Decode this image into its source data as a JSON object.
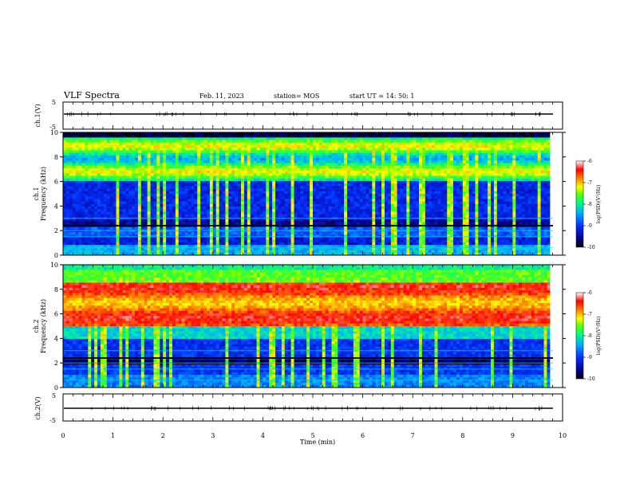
{
  "header": {
    "title": "VLF Spectra",
    "date": "Feb. 11, 2023",
    "station": "station= MOS",
    "start": "start  UT  =   14: 50: 1"
  },
  "chart_data": [
    {
      "type": "line",
      "name": "ch1-waveform",
      "ylabel": "ch.1(V)",
      "ylim": [
        -5,
        5
      ],
      "yticks": [
        "5",
        "-5"
      ],
      "xlim": [
        0,
        10
      ],
      "baseline": 0
    },
    {
      "type": "heatmap",
      "name": "ch1-spectrogram",
      "ylabel": "ch.1\nFrequency  (kHz)",
      "ylim": [
        0,
        10
      ],
      "yticks": [
        "0",
        "2",
        "4",
        "6",
        "8",
        "10"
      ],
      "xlim": [
        0,
        10
      ],
      "colorbar": {
        "label": "log(PSD)(V²/Hz)",
        "range": [
          -10,
          -6
        ],
        "ticks": [
          "-6",
          "-7",
          "-8",
          "-9",
          "-10"
        ]
      },
      "dominant_band_khz": [
        6,
        10
      ]
    },
    {
      "type": "heatmap",
      "name": "ch2-spectrogram",
      "ylabel": "ch.2\nFrequency  (kHz)",
      "ylim": [
        0,
        10
      ],
      "yticks": [
        "0",
        "2",
        "4",
        "6",
        "8",
        "10"
      ],
      "xlim": [
        0,
        10
      ],
      "colorbar": {
        "label": "log(PSD)(V²/Hz)",
        "range": [
          -10,
          -6
        ],
        "ticks": [
          "-6",
          "-7",
          "-8",
          "-9",
          "-10"
        ]
      },
      "dominant_band_khz": [
        5,
        9
      ]
    },
    {
      "type": "line",
      "name": "ch2-waveform",
      "ylabel": "ch.2(V)",
      "ylim": [
        -5,
        5
      ],
      "yticks": [
        "5",
        "-5"
      ],
      "xlim": [
        0,
        10
      ],
      "baseline": 0
    }
  ],
  "xaxis": {
    "label": "Time  (min)",
    "ticks": [
      "0",
      "1",
      "2",
      "3",
      "4",
      "5",
      "6",
      "7",
      "8",
      "9",
      "10"
    ]
  },
  "colors": {
    "cmap": [
      "#000080",
      "#0000ff",
      "#00b0ff",
      "#00ff80",
      "#80ff00",
      "#ffff00",
      "#ff8000",
      "#ff0000",
      "#ffffff"
    ]
  }
}
